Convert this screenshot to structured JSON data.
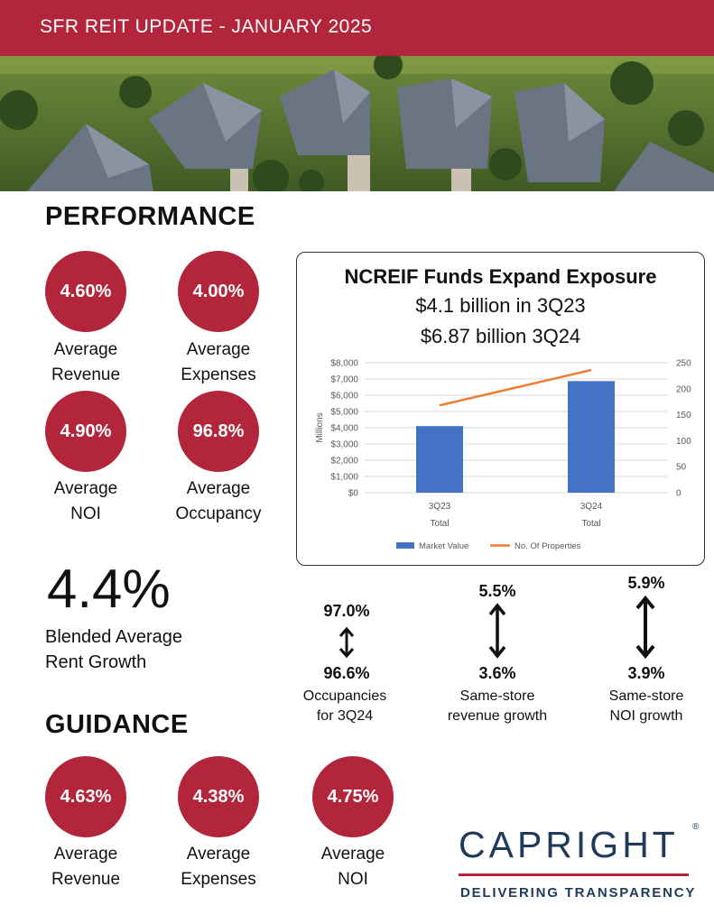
{
  "header": {
    "title": "SFR REIT UPDATE - JANUARY 2025"
  },
  "colors": {
    "brand": "#b3253a",
    "navy": "#1f3a5a",
    "bar": "#4472c4",
    "line": "#ed7d31"
  },
  "performance": {
    "title": "PERFORMANCE",
    "metrics": [
      {
        "value": "4.60%",
        "line1": "Average",
        "line2": "Revenue"
      },
      {
        "value": "4.00%",
        "line1": "Average",
        "line2": "Expenses"
      },
      {
        "value": "4.90%",
        "line1": "Average",
        "line2": "NOI"
      },
      {
        "value": "96.8%",
        "line1": "Average",
        "line2": "Occupancy"
      }
    ],
    "big_value": "4.4%",
    "big_label1": "Blended Average",
    "big_label2": "Rent Growth"
  },
  "chart_box": {
    "title": "NCREIF Funds Expand Exposure",
    "sub1": "$4.1 billion in 3Q23",
    "sub2": "$6.87 billion 3Q24"
  },
  "chart_data": {
    "type": "bar",
    "categories": [
      "3Q23",
      "3Q24"
    ],
    "category_sublabel": "Total",
    "series": [
      {
        "name": "Market Value",
        "kind": "bar",
        "axis": "left",
        "values": [
          4100,
          6870
        ]
      },
      {
        "name": "No. Of Properties",
        "kind": "line",
        "axis": "right",
        "values": [
          168,
          236
        ]
      }
    ],
    "ylabel": "Millions",
    "ylim": [
      0,
      8000
    ],
    "yticks": [
      "$0",
      "$1,000",
      "$2,000",
      "$3,000",
      "$4,000",
      "$5,000",
      "$6,000",
      "$7,000",
      "$8,000"
    ],
    "y2lim": [
      0,
      250
    ],
    "y2ticks": [
      "0",
      "50",
      "100",
      "150",
      "200",
      "250"
    ],
    "legend": [
      "Market Value",
      "No. Of Properties"
    ],
    "legend_position": "bottom",
    "grid": true
  },
  "ranges": [
    {
      "top": "97.0%",
      "bottom": "96.6%",
      "cap1": "Occupancies",
      "cap2": "for 3Q24"
    },
    {
      "top": "5.5%",
      "bottom": "3.6%",
      "cap1": "Same-store",
      "cap2": "revenue growth"
    },
    {
      "top": "5.9%",
      "bottom": "3.9%",
      "cap1": "Same-store",
      "cap2": "NOI growth"
    }
  ],
  "guidance": {
    "title": "GUIDANCE",
    "metrics": [
      {
        "value": "4.63%",
        "line1": "Average",
        "line2": "Revenue"
      },
      {
        "value": "4.38%",
        "line1": "Average",
        "line2": "Expenses"
      },
      {
        "value": "4.75%",
        "line1": "Average",
        "line2": "NOI"
      }
    ]
  },
  "logo": {
    "name": "CAPRIGHT",
    "mark": "®",
    "tagline": "DELIVERING TRANSPARENCY"
  }
}
